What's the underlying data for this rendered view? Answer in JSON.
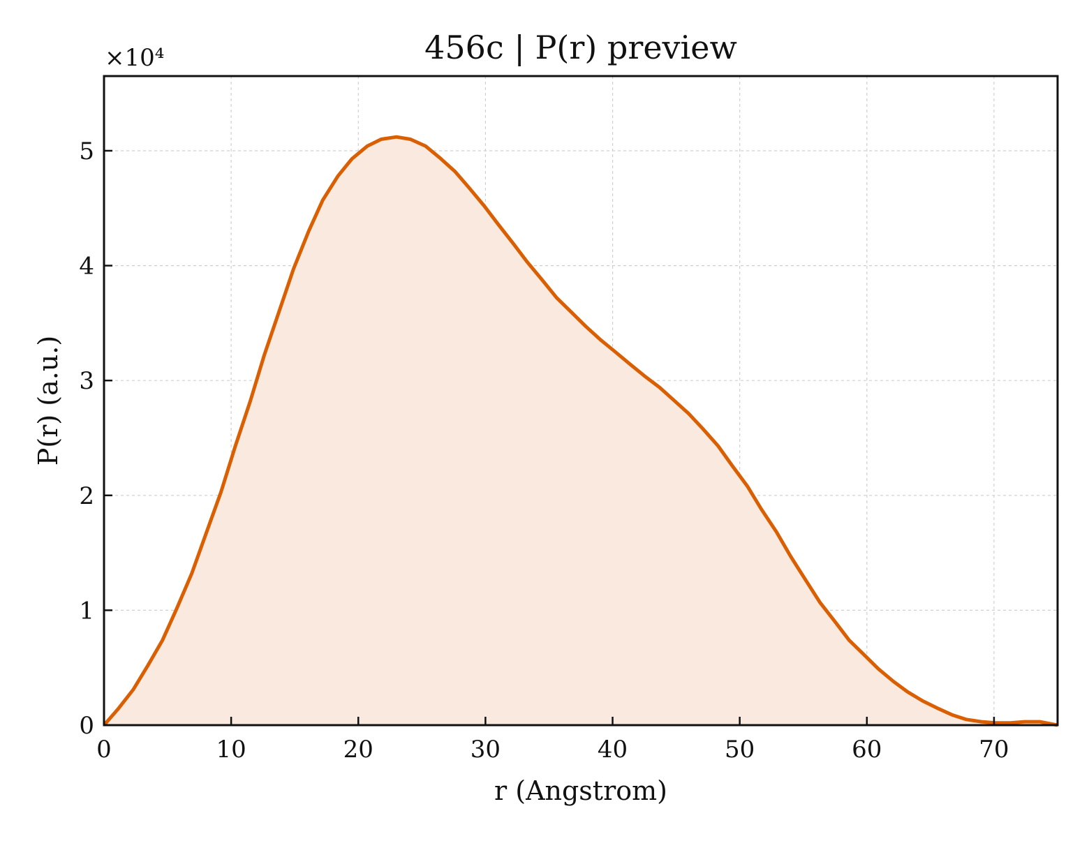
{
  "chart_data": {
    "type": "area",
    "title": "456c | P(r) preview",
    "xlabel": "r (Angstrom)",
    "ylabel": "P(r) (a.u.)",
    "y_offset_text": "×10⁴",
    "xlim": [
      0,
      75
    ],
    "ylim": [
      0,
      5.65
    ],
    "y_scale_factor": 10000,
    "xticks": [
      0,
      10,
      20,
      30,
      40,
      50,
      60,
      70
    ],
    "yticks": [
      0,
      1,
      2,
      3,
      4,
      5
    ],
    "xtick_labels": [
      "0",
      "10",
      "20",
      "30",
      "40",
      "50",
      "60",
      "70"
    ],
    "ytick_labels": [
      "0",
      "1",
      "2",
      "3",
      "4",
      "5"
    ],
    "grid": true,
    "line_color": "#d95f02",
    "fill_color": "#f9e9de",
    "series": [
      {
        "x": [
          0,
          1.1,
          2.3,
          3.4,
          4.6,
          5.7,
          6.9,
          8.0,
          9.2,
          10.3,
          11.5,
          12.6,
          13.8,
          14.9,
          16.1,
          17.2,
          18.4,
          19.5,
          20.7,
          21.8,
          23.0,
          24.1,
          25.3,
          26.4,
          27.6,
          28.7,
          29.9,
          31.0,
          32.2,
          33.3,
          34.5,
          35.6,
          36.8,
          37.9,
          39.1,
          40.2,
          41.4,
          42.5,
          43.7,
          44.8,
          46.0,
          47.1,
          48.3,
          49.4,
          50.6,
          51.7,
          52.9,
          54.0,
          55.2,
          56.3,
          57.5,
          58.6,
          59.8,
          60.9,
          62.1,
          63.2,
          64.4,
          65.5,
          66.7,
          67.8,
          69.0,
          70.1,
          71.3,
          72.4,
          73.6,
          75.0
        ],
        "y": [
          0.0,
          0.14,
          0.31,
          0.51,
          0.74,
          1.01,
          1.32,
          1.66,
          2.03,
          2.42,
          2.82,
          3.22,
          3.61,
          3.97,
          4.3,
          4.57,
          4.78,
          4.93,
          5.04,
          5.1,
          5.12,
          5.1,
          5.04,
          4.94,
          4.82,
          4.68,
          4.52,
          4.36,
          4.19,
          4.03,
          3.87,
          3.72,
          3.59,
          3.47,
          3.35,
          3.25,
          3.14,
          3.04,
          2.94,
          2.83,
          2.71,
          2.58,
          2.43,
          2.26,
          2.08,
          1.88,
          1.68,
          1.47,
          1.26,
          1.07,
          0.9,
          0.74,
          0.61,
          0.49,
          0.38,
          0.29,
          0.21,
          0.15,
          0.09,
          0.05,
          0.03,
          0.02,
          0.02,
          0.03,
          0.03,
          0.0
        ]
      }
    ]
  }
}
